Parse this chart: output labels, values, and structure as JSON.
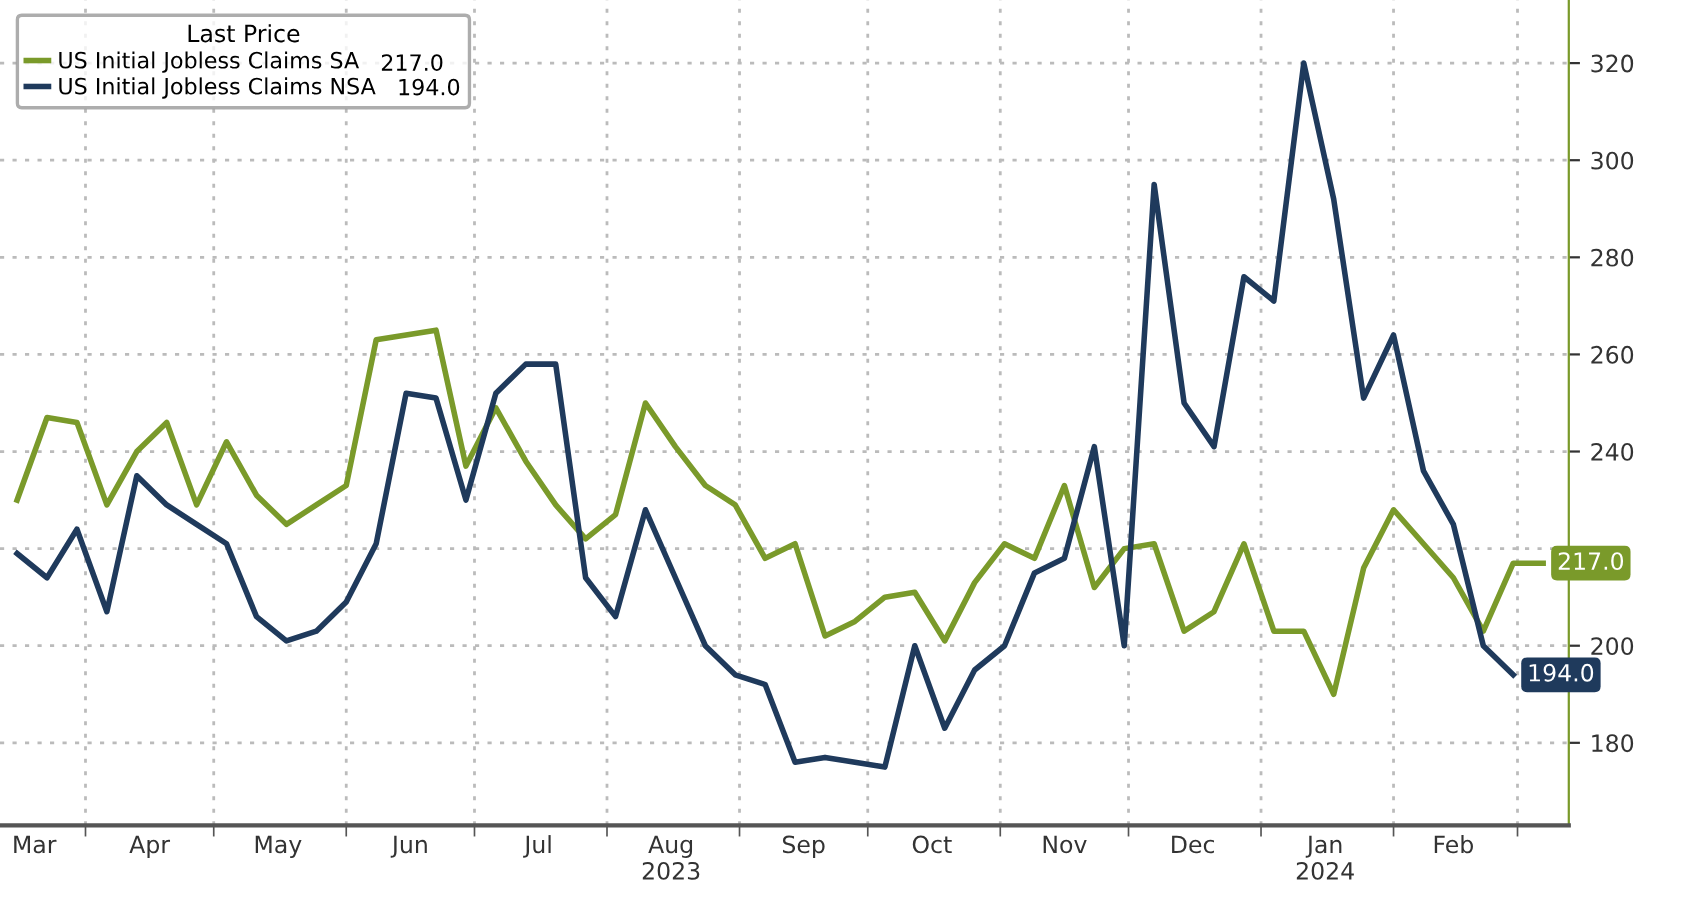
{
  "chart_data": {
    "type": "line",
    "legend_title": "Last Price",
    "x": [
      "2023-03-16",
      "2023-03-23",
      "2023-03-30",
      "2023-04-06",
      "2023-04-13",
      "2023-04-20",
      "2023-04-27",
      "2023-05-04",
      "2023-05-11",
      "2023-05-18",
      "2023-05-25",
      "2023-06-01",
      "2023-06-08",
      "2023-06-15",
      "2023-06-22",
      "2023-06-29",
      "2023-07-06",
      "2023-07-13",
      "2023-07-20",
      "2023-07-27",
      "2023-08-03",
      "2023-08-10",
      "2023-08-17",
      "2023-08-24",
      "2023-08-31",
      "2023-09-07",
      "2023-09-14",
      "2023-09-21",
      "2023-09-28",
      "2023-10-05",
      "2023-10-12",
      "2023-10-19",
      "2023-10-26",
      "2023-11-02",
      "2023-11-09",
      "2023-11-16",
      "2023-11-23",
      "2023-11-30",
      "2023-12-07",
      "2023-12-14",
      "2023-12-21",
      "2023-12-28",
      "2024-01-04",
      "2024-01-11",
      "2024-01-18",
      "2024-01-25",
      "2024-02-01",
      "2024-02-08",
      "2024-02-15",
      "2024-02-22",
      "2024-02-29",
      "2024-03-07"
    ],
    "series": [
      {
        "name": "US Initial Jobless Claims SA",
        "color": "#7a9a2a",
        "values": [
          230,
          247,
          246,
          229,
          240,
          246,
          229,
          242,
          231,
          225,
          229,
          233,
          263,
          264,
          265,
          237,
          249,
          238,
          229,
          222,
          227,
          250,
          241,
          233,
          229,
          218,
          221,
          202,
          205,
          210,
          211,
          201,
          213,
          221,
          218,
          233,
          212,
          220,
          221,
          203,
          207,
          221,
          203,
          203,
          190,
          216,
          228,
          221,
          214,
          203,
          217,
          217
        ],
        "value_labels": [
          null,
          null,
          null,
          null,
          null,
          null,
          null,
          null,
          null,
          null,
          null,
          null,
          null,
          null,
          null,
          null,
          null,
          null,
          null,
          null,
          null,
          null,
          null,
          null,
          null,
          null,
          null,
          null,
          null,
          null,
          null,
          null,
          null,
          null,
          null,
          null,
          null,
          null,
          null,
          null,
          null,
          null,
          null,
          null,
          null,
          null,
          null,
          null,
          null,
          null,
          null,
          "217.0"
        ]
      },
      {
        "name": "US Initial Jobless Claims NSA",
        "color": "#1f3a5c",
        "values": [
          219,
          214,
          224,
          207,
          235,
          229,
          225,
          221,
          206,
          201,
          203,
          209,
          221,
          252,
          251,
          230,
          252,
          258,
          258,
          214,
          206,
          228,
          214,
          200,
          194,
          192,
          176,
          177,
          176,
          175,
          200,
          183,
          195,
          200,
          215,
          218,
          241,
          200,
          295,
          250,
          241,
          276,
          271,
          320,
          292,
          251,
          264,
          236,
          225,
          200,
          194,
          null
        ],
        "value_labels": [
          null,
          null,
          null,
          null,
          null,
          null,
          null,
          null,
          null,
          null,
          null,
          null,
          null,
          null,
          null,
          null,
          null,
          null,
          null,
          null,
          null,
          null,
          null,
          null,
          null,
          null,
          null,
          null,
          null,
          null,
          null,
          null,
          null,
          null,
          null,
          null,
          null,
          null,
          null,
          null,
          null,
          null,
          null,
          null,
          null,
          null,
          null,
          null,
          null,
          null,
          "194.0",
          null
        ]
      }
    ],
    "xlim": [
      "2023-03-12",
      "2024-03-13"
    ],
    "xticks": [
      {
        "value": "2023-04-01",
        "label": null
      },
      {
        "value": "2023-05-01",
        "label": null
      },
      {
        "value": "2023-06-01",
        "label": null
      },
      {
        "value": "2023-07-01",
        "label": null
      },
      {
        "value": "2023-08-01",
        "label": null
      },
      {
        "value": "2023-09-01",
        "label": null
      },
      {
        "value": "2023-10-01",
        "label": null
      },
      {
        "value": "2023-11-01",
        "label": null
      },
      {
        "value": "2023-12-01",
        "label": null
      },
      {
        "value": "2024-01-01",
        "label": null
      },
      {
        "value": "2024-02-01",
        "label": null
      },
      {
        "value": "2024-03-01",
        "label": null
      },
      {
        "value": "2023-03-20",
        "label": "Mar"
      },
      {
        "value": "2023-04-16",
        "label": "Apr"
      },
      {
        "value": "2023-05-16",
        "label": "May"
      },
      {
        "value": "2023-06-16",
        "label": "Jun"
      },
      {
        "value": "2023-07-16",
        "label": "Jul"
      },
      {
        "value": "2023-08-16",
        "label": "Aug\n2023"
      },
      {
        "value": "2023-09-16",
        "label": "Sep"
      },
      {
        "value": "2023-10-16",
        "label": "Oct"
      },
      {
        "value": "2023-11-16",
        "label": "Nov"
      },
      {
        "value": "2023-12-16",
        "label": "Dec"
      },
      {
        "value": "2024-01-16",
        "label": "Jan\n2024"
      },
      {
        "value": "2024-02-15",
        "label": "Feb"
      }
    ],
    "ylim": [
      163,
      333
    ],
    "yticks": [
      180,
      200,
      {
        "value": 220,
        "label": null
      },
      240,
      260,
      280,
      300,
      320
    ],
    "grid": true,
    "legend": "top left",
    "line_style": "solid",
    "marker": "none"
  }
}
